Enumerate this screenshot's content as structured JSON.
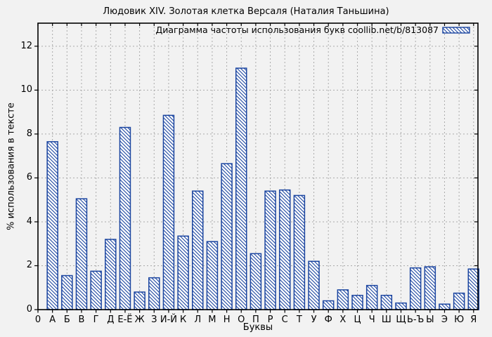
{
  "header": {
    "title": "Людовик XIV. Золотая клетка Версаля (Наталия Таньшина)"
  },
  "chart_data": {
    "type": "bar",
    "title": "Людовик XIV. Золотая клетка Версаля (Наталия Таньшина)",
    "legend": "Диаграмма частоты использования букв coollib.net/b/813087",
    "legend_position": "top-right",
    "xlabel": "Буквы",
    "ylabel": "% использования в тексте",
    "origin_tick_label": "0",
    "categories": [
      "А",
      "Б",
      "В",
      "Г",
      "Д",
      "Е-Ё",
      "Ж",
      "З",
      "И-Й",
      "К",
      "Л",
      "М",
      "Н",
      "О",
      "П",
      "Р",
      "С",
      "Т",
      "У",
      "Ф",
      "Х",
      "Ц",
      "Ч",
      "Ш",
      "Щ",
      "Ь-Ъ",
      "Ы",
      "Э",
      "Ю",
      "Я"
    ],
    "values": [
      7.65,
      1.55,
      5.05,
      1.75,
      3.2,
      8.3,
      0.8,
      1.45,
      8.85,
      3.35,
      5.4,
      3.1,
      6.65,
      11.0,
      2.55,
      5.4,
      5.45,
      5.2,
      2.2,
      0.4,
      0.9,
      0.65,
      1.1,
      0.65,
      0.3,
      1.9,
      1.95,
      0.25,
      0.75,
      1.85
    ],
    "yticks": [
      0,
      2,
      4,
      6,
      8,
      10,
      12
    ],
    "ylim": [
      0,
      13.05
    ],
    "grid": true,
    "colors": {
      "bar_stroke": "#1b45a0",
      "bar_hatch": "#1b45a0",
      "bar_fill": "#ffffff",
      "grid": "#aaaaaa",
      "axis": "#000000",
      "background": "#f2f2f2",
      "text": "#000000"
    }
  }
}
